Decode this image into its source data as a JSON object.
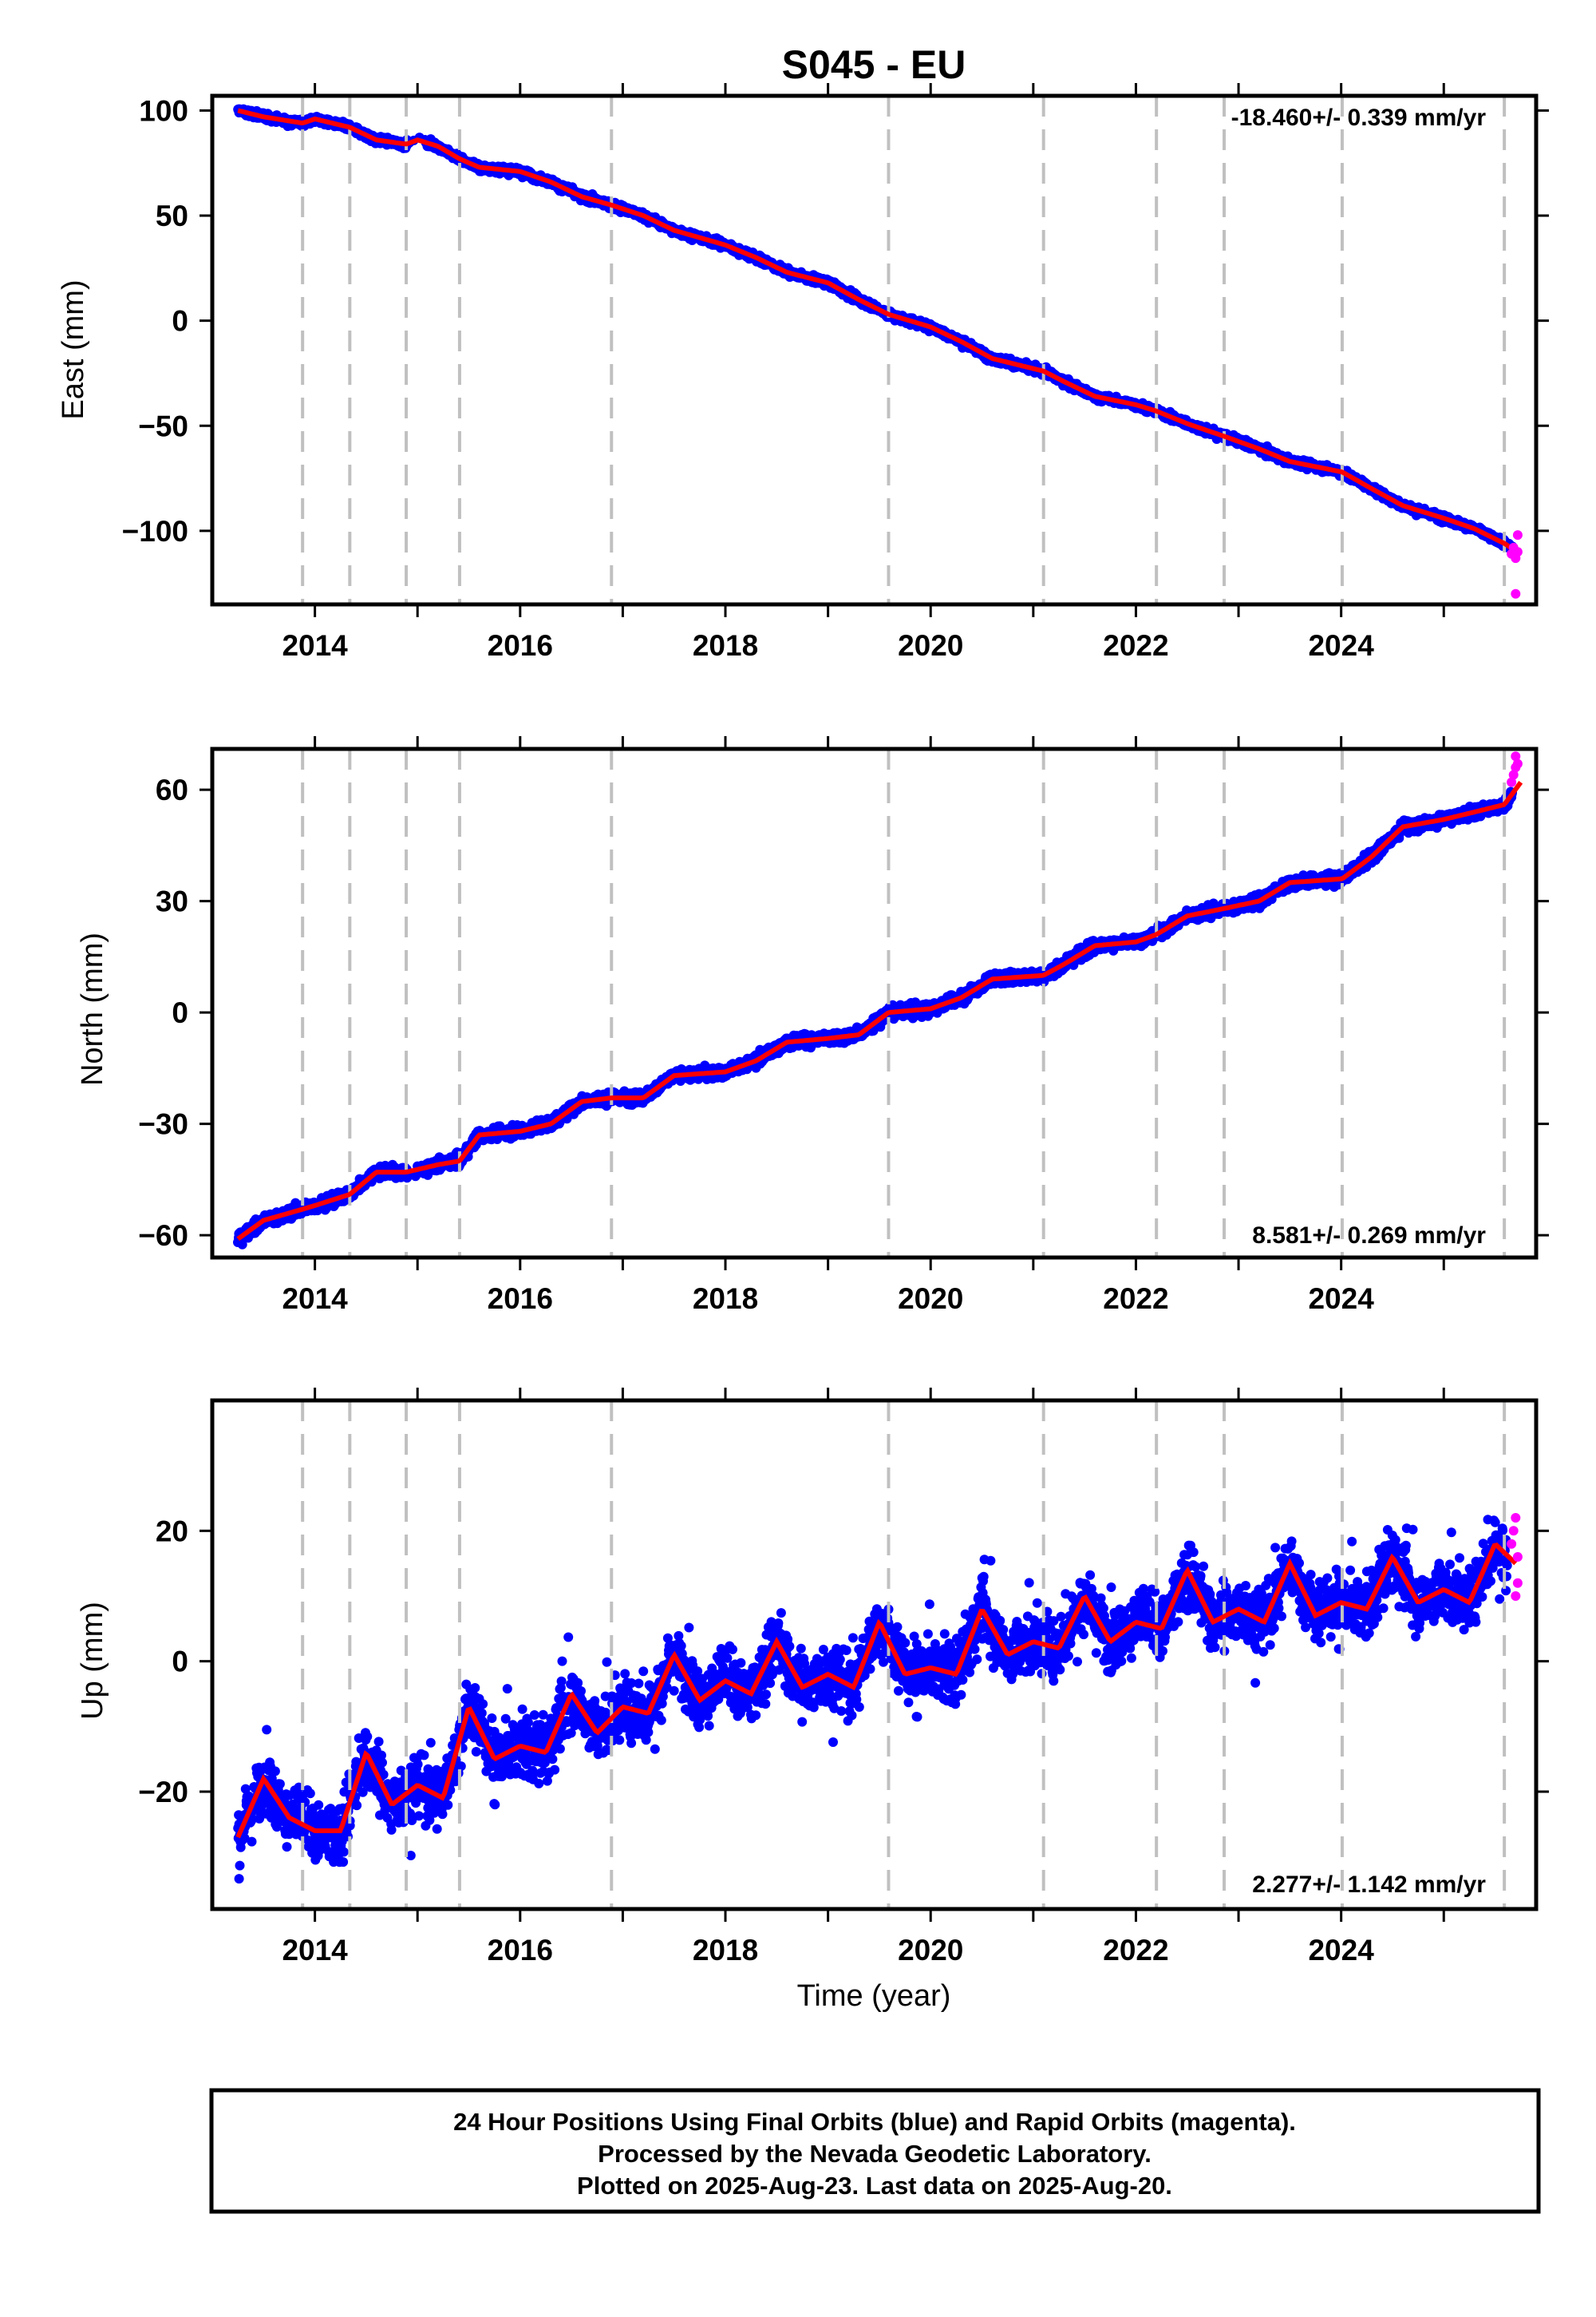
{
  "title": "S045 - EU",
  "xlabel": "Time (year)",
  "footer": {
    "line1": "24 Hour Positions Using Final Orbits (blue) and Rapid Orbits (magenta).",
    "line2": "Processed by the Nevada Geodetic Laboratory.",
    "line3": "Plotted on 2025-Aug-23. Last data on 2025-Aug-20."
  },
  "colors": {
    "final_orbits": "#0000ff",
    "rapid_orbits": "#ff00ff",
    "model_fit": "#ff0000",
    "event_lines": "#c0c0c0"
  },
  "chart_data": [
    {
      "type": "scatter",
      "ylabel": "East (mm)",
      "rate_text": "-18.460+/- 0.339 mm/yr",
      "xlim": [
        2013.0,
        2025.9
      ],
      "ylim": [
        -135,
        107
      ],
      "yticks": [
        100,
        50,
        0,
        -50,
        -100
      ],
      "ytick_labels": [
        "100",
        "50",
        "0",
        "−50",
        "−100"
      ],
      "xticks": [
        2014,
        2016,
        2018,
        2020,
        2022,
        2024
      ],
      "event_lines": [
        2013.88,
        2014.34,
        2014.89,
        2015.41,
        2016.89,
        2019.59,
        2021.1,
        2022.2,
        2022.86,
        2024.01,
        2025.59
      ],
      "fit": {
        "x": [
          2013.25,
          2013.5,
          2013.88,
          2014.0,
          2014.34,
          2014.6,
          2014.89,
          2015.0,
          2015.2,
          2015.41,
          2015.6,
          2016.0,
          2016.3,
          2016.6,
          2016.89,
          2017.2,
          2017.5,
          2018.0,
          2018.3,
          2018.6,
          2019.0,
          2019.3,
          2019.59,
          2020.0,
          2020.3,
          2020.6,
          2021.1,
          2021.3,
          2021.6,
          2022.0,
          2022.2,
          2022.5,
          2022.86,
          2023.2,
          2023.5,
          2024.01,
          2024.3,
          2024.6,
          2025.0,
          2025.3,
          2025.59,
          2025.75
        ],
        "y": [
          100,
          97,
          94,
          96,
          92,
          86,
          84,
          86,
          83,
          77,
          73,
          71,
          66,
          59,
          55,
          50,
          43,
          36,
          30,
          23,
          18,
          10,
          3,
          -3,
          -10,
          -18,
          -24,
          -29,
          -36,
          -40,
          -43,
          -49,
          -55,
          -61,
          -67,
          -72,
          -80,
          -88,
          -94,
          -99,
          -106,
          -111
        ]
      },
      "rapid": {
        "x": [
          2025.66,
          2025.68,
          2025.7,
          2025.72,
          2025.7,
          2025.72
        ],
        "y": [
          -111,
          -108,
          -113,
          -102,
          -130,
          -110
        ]
      }
    },
    {
      "type": "scatter",
      "ylabel": "North (mm)",
      "rate_text": "8.581+/- 0.269 mm/yr",
      "xlim": [
        2013.0,
        2025.9
      ],
      "ylim": [
        -66,
        71
      ],
      "yticks": [
        60,
        30,
        0,
        -30,
        -60
      ],
      "ytick_labels": [
        "60",
        "30",
        "0",
        "−30",
        "−60"
      ],
      "xticks": [
        2014,
        2016,
        2018,
        2020,
        2022,
        2024
      ],
      "event_lines": [
        2013.88,
        2014.34,
        2014.89,
        2015.41,
        2016.89,
        2019.59,
        2021.1,
        2022.2,
        2022.86,
        2024.01,
        2025.59
      ],
      "fit": {
        "x": [
          2013.25,
          2013.5,
          2013.88,
          2014.0,
          2014.34,
          2014.6,
          2014.89,
          2015.2,
          2015.41,
          2015.6,
          2016.0,
          2016.3,
          2016.6,
          2016.89,
          2017.2,
          2017.5,
          2018.0,
          2018.3,
          2018.6,
          2019.0,
          2019.3,
          2019.59,
          2020.0,
          2020.3,
          2020.6,
          2021.1,
          2021.3,
          2021.6,
          2022.0,
          2022.2,
          2022.5,
          2022.86,
          2023.2,
          2023.5,
          2024.01,
          2024.3,
          2024.6,
          2025.0,
          2025.3,
          2025.59,
          2025.75
        ],
        "y": [
          -61,
          -56,
          -53,
          -52,
          -49,
          -43,
          -43,
          -41,
          -40,
          -33,
          -32,
          -30,
          -24,
          -23,
          -23,
          -17,
          -16,
          -13,
          -8,
          -7,
          -6,
          0,
          1,
          4,
          9,
          10,
          13,
          18,
          19,
          21,
          26,
          28,
          30,
          35,
          36,
          42,
          50,
          52,
          54,
          56,
          62
        ]
      },
      "rapid": {
        "x": [
          2025.66,
          2025.68,
          2025.7,
          2025.72,
          2025.7
        ],
        "y": [
          62,
          64,
          66,
          67,
          69
        ]
      }
    },
    {
      "type": "scatter",
      "ylabel": "Up (mm)",
      "rate_text": "2.277+/- 1.142 mm/yr",
      "xlim": [
        2013.0,
        2025.9
      ],
      "ylim": [
        -38,
        40
      ],
      "yticks": [
        20,
        0,
        -20
      ],
      "ytick_labels": [
        "20",
        "0",
        "−20"
      ],
      "xticks": [
        2014,
        2016,
        2018,
        2020,
        2022,
        2024
      ],
      "event_lines": [
        2013.88,
        2014.34,
        2014.89,
        2015.41,
        2016.89,
        2019.59,
        2021.1,
        2022.2,
        2022.86,
        2024.01,
        2025.59
      ],
      "fit": {
        "x": [
          2013.25,
          2013.5,
          2013.75,
          2014.0,
          2014.25,
          2014.5,
          2014.75,
          2015.0,
          2015.25,
          2015.5,
          2015.75,
          2016.0,
          2016.25,
          2016.5,
          2016.75,
          2017.0,
          2017.25,
          2017.5,
          2017.75,
          2018.0,
          2018.25,
          2018.5,
          2018.75,
          2019.0,
          2019.25,
          2019.5,
          2019.75,
          2020.0,
          2020.25,
          2020.5,
          2020.75,
          2021.0,
          2021.25,
          2021.5,
          2021.75,
          2022.0,
          2022.25,
          2022.5,
          2022.75,
          2023.0,
          2023.25,
          2023.5,
          2023.75,
          2024.0,
          2024.25,
          2024.5,
          2024.75,
          2025.0,
          2025.25,
          2025.5,
          2025.7
        ],
        "y": [
          -27,
          -18,
          -24,
          -26,
          -26,
          -14,
          -22,
          -19,
          -21,
          -7,
          -15,
          -13,
          -14,
          -5,
          -11,
          -7,
          -8,
          1,
          -6,
          -3,
          -5,
          3,
          -4,
          -2,
          -4,
          6,
          -2,
          -1,
          -2,
          8,
          1,
          3,
          2,
          10,
          3,
          6,
          5,
          14,
          6,
          8,
          6,
          15,
          7,
          9,
          8,
          16,
          9,
          11,
          9,
          18,
          15
        ]
      },
      "rapid": {
        "x": [
          2025.66,
          2025.68,
          2025.7,
          2025.72,
          2025.7,
          2025.72
        ],
        "y": [
          18,
          20,
          22,
          12,
          10,
          16
        ]
      }
    }
  ]
}
